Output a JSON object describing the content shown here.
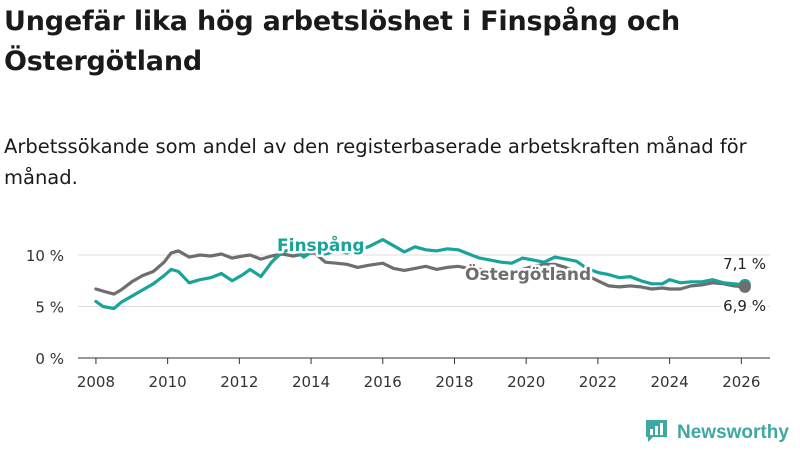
{
  "title": "Ungefär lika hög arbetslöshet i Finspång och Östergötland",
  "subtitle": "Arbetssökande som andel av den registerbaserade arbetskraften månad för månad.",
  "brand": {
    "name": "Newsworthy",
    "icon": "newsworthy-logo-icon",
    "color": "#3fa8a0"
  },
  "colors": {
    "finspang": "#1aa39a",
    "ostergotland": "#6e6e6e",
    "grid": "#dddddd",
    "axis": "#333333"
  },
  "chart_data": {
    "type": "line",
    "title": "Ungefär lika hög arbetslöshet i Finspång och Östergötland",
    "ylabel": "",
    "xlabel": "",
    "xlim": [
      2007.5,
      2026.8
    ],
    "ylim": [
      0,
      10
    ],
    "y_ticks": [
      0,
      5,
      10
    ],
    "y_tick_labels": [
      "0 %",
      "5 %",
      "10 %"
    ],
    "x_ticks": [
      2008,
      2010,
      2012,
      2014,
      2016,
      2018,
      2020,
      2022,
      2024,
      2026
    ],
    "x_tick_labels": [
      "2008",
      "2010",
      "2012",
      "2014",
      "2016",
      "2018",
      "2020",
      "2022",
      "2024",
      "2026"
    ],
    "grid": true,
    "series": [
      {
        "name": "Finspång",
        "color": "#1aa39a",
        "end_label": "7,1 %",
        "points": [
          [
            2008.0,
            5.5
          ],
          [
            2008.2,
            5.0
          ],
          [
            2008.5,
            4.8
          ],
          [
            2008.7,
            5.4
          ],
          [
            2009.0,
            6.0
          ],
          [
            2009.3,
            6.6
          ],
          [
            2009.6,
            7.2
          ],
          [
            2009.9,
            8.0
          ],
          [
            2010.1,
            8.6
          ],
          [
            2010.3,
            8.4
          ],
          [
            2010.6,
            7.3
          ],
          [
            2010.9,
            7.6
          ],
          [
            2011.2,
            7.8
          ],
          [
            2011.5,
            8.2
          ],
          [
            2011.8,
            7.5
          ],
          [
            2012.1,
            8.1
          ],
          [
            2012.3,
            8.6
          ],
          [
            2012.6,
            7.9
          ],
          [
            2012.9,
            9.3
          ],
          [
            2013.2,
            10.3
          ],
          [
            2013.5,
            10.6
          ],
          [
            2013.8,
            9.8
          ],
          [
            2014.1,
            10.5
          ],
          [
            2014.4,
            10.1
          ],
          [
            2014.7,
            10.4
          ],
          [
            2015.0,
            10.2
          ],
          [
            2015.3,
            10.5
          ],
          [
            2015.6,
            10.8
          ],
          [
            2016.0,
            11.5
          ],
          [
            2016.3,
            10.9
          ],
          [
            2016.6,
            10.3
          ],
          [
            2016.9,
            10.8
          ],
          [
            2017.2,
            10.5
          ],
          [
            2017.5,
            10.4
          ],
          [
            2017.8,
            10.6
          ],
          [
            2018.1,
            10.5
          ],
          [
            2018.4,
            10.1
          ],
          [
            2018.7,
            9.7
          ],
          [
            2019.0,
            9.5
          ],
          [
            2019.3,
            9.3
          ],
          [
            2019.6,
            9.2
          ],
          [
            2019.9,
            9.7
          ],
          [
            2020.2,
            9.5
          ],
          [
            2020.5,
            9.3
          ],
          [
            2020.8,
            9.8
          ],
          [
            2021.1,
            9.6
          ],
          [
            2021.4,
            9.4
          ],
          [
            2021.7,
            8.7
          ],
          [
            2022.0,
            8.3
          ],
          [
            2022.3,
            8.1
          ],
          [
            2022.6,
            7.8
          ],
          [
            2022.9,
            7.9
          ],
          [
            2023.2,
            7.5
          ],
          [
            2023.5,
            7.2
          ],
          [
            2023.8,
            7.2
          ],
          [
            2024.0,
            7.6
          ],
          [
            2024.3,
            7.3
          ],
          [
            2024.6,
            7.4
          ],
          [
            2024.9,
            7.4
          ],
          [
            2025.2,
            7.6
          ],
          [
            2025.5,
            7.3
          ],
          [
            2025.8,
            7.2
          ],
          [
            2026.1,
            7.1
          ]
        ]
      },
      {
        "name": "Östergötland",
        "color": "#6e6e6e",
        "end_label": "6,9 %",
        "points": [
          [
            2008.0,
            6.7
          ],
          [
            2008.2,
            6.5
          ],
          [
            2008.5,
            6.2
          ],
          [
            2008.7,
            6.6
          ],
          [
            2009.0,
            7.4
          ],
          [
            2009.3,
            8.0
          ],
          [
            2009.6,
            8.4
          ],
          [
            2009.9,
            9.3
          ],
          [
            2010.1,
            10.2
          ],
          [
            2010.3,
            10.4
          ],
          [
            2010.6,
            9.8
          ],
          [
            2010.9,
            10.0
          ],
          [
            2011.2,
            9.9
          ],
          [
            2011.5,
            10.1
          ],
          [
            2011.8,
            9.7
          ],
          [
            2012.1,
            9.9
          ],
          [
            2012.3,
            10.0
          ],
          [
            2012.6,
            9.6
          ],
          [
            2012.9,
            9.9
          ],
          [
            2013.2,
            10.1
          ],
          [
            2013.5,
            9.9
          ],
          [
            2013.8,
            10.1
          ],
          [
            2014.1,
            10.2
          ],
          [
            2014.4,
            9.3
          ],
          [
            2014.7,
            9.2
          ],
          [
            2015.0,
            9.1
          ],
          [
            2015.3,
            8.8
          ],
          [
            2015.6,
            9.0
          ],
          [
            2016.0,
            9.2
          ],
          [
            2016.3,
            8.7
          ],
          [
            2016.6,
            8.5
          ],
          [
            2016.9,
            8.7
          ],
          [
            2017.2,
            8.9
          ],
          [
            2017.5,
            8.6
          ],
          [
            2017.8,
            8.8
          ],
          [
            2018.1,
            8.9
          ],
          [
            2018.4,
            8.7
          ],
          [
            2018.7,
            8.6
          ],
          [
            2019.0,
            8.5
          ],
          [
            2019.3,
            8.5
          ],
          [
            2019.6,
            8.4
          ],
          [
            2019.9,
            8.6
          ],
          [
            2020.2,
            8.9
          ],
          [
            2020.5,
            9.1
          ],
          [
            2020.8,
            9.1
          ],
          [
            2021.1,
            8.8
          ],
          [
            2021.4,
            8.3
          ],
          [
            2021.7,
            8.0
          ],
          [
            2022.0,
            7.5
          ],
          [
            2022.3,
            7.0
          ],
          [
            2022.6,
            6.9
          ],
          [
            2022.9,
            7.0
          ],
          [
            2023.2,
            6.9
          ],
          [
            2023.5,
            6.7
          ],
          [
            2023.8,
            6.8
          ],
          [
            2024.0,
            6.7
          ],
          [
            2024.3,
            6.7
          ],
          [
            2024.6,
            7.0
          ],
          [
            2024.9,
            7.1
          ],
          [
            2025.2,
            7.3
          ],
          [
            2025.5,
            7.2
          ],
          [
            2025.8,
            7.0
          ],
          [
            2026.1,
            6.9
          ]
        ]
      }
    ]
  }
}
